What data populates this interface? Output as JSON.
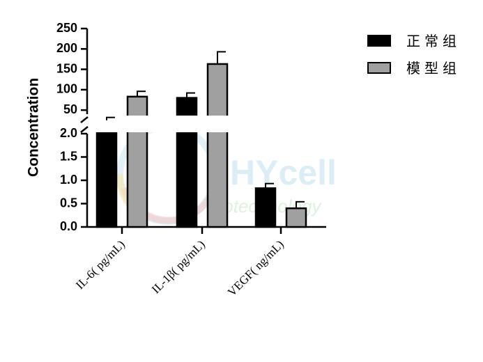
{
  "chart_data": {
    "type": "bar",
    "ylabel": "Concentration",
    "categories": [
      "IL-6( pg/mL)",
      "IL-1β( pg/mL)",
      "VEGF( ng/mL)"
    ],
    "series": [
      {
        "name": "正常组",
        "color": "#000000",
        "values": [
          25,
          80,
          0.83
        ],
        "errors": [
          7,
          12,
          0.1
        ]
      },
      {
        "name": "模型组",
        "color": "#a0a0a0",
        "values": [
          83,
          163,
          0.4
        ],
        "errors": [
          13,
          30,
          0.14
        ]
      }
    ],
    "y_axis_broken": true,
    "lower_segment": {
      "ylim": [
        0,
        2.0
      ],
      "ticks": [
        "0.0",
        "0.5",
        "1.0",
        "1.5",
        "2.0"
      ]
    },
    "upper_segment": {
      "ylim": [
        40,
        250
      ],
      "ticks": [
        "50",
        "100",
        "150",
        "200",
        "250"
      ]
    },
    "legend_position": "top-right",
    "grid": false
  },
  "watermark": {
    "text": "HYcell",
    "subtext": "biotechnology"
  }
}
